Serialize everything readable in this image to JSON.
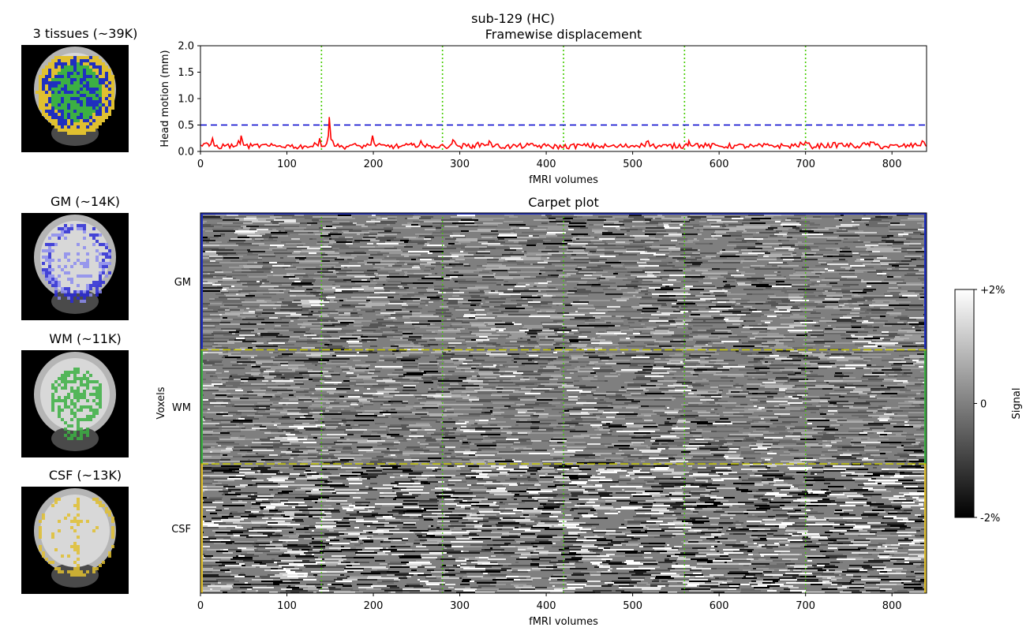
{
  "figure_title": "sub-129 (HC)",
  "thumbnails": [
    {
      "title": "3 tissues (~39K)",
      "overlay": "tissues"
    },
    {
      "title": "GM (~14K)",
      "overlay": "gm"
    },
    {
      "title": "WM (~11K)",
      "overlay": "wm"
    },
    {
      "title": "CSF (~13K)",
      "overlay": "csf"
    }
  ],
  "colors": {
    "gm": "#1f2fbf",
    "wm": "#3cb043",
    "csf": "#e0c030",
    "fd_line": "#ff0000",
    "threshold": "#0000cc",
    "marker": "#44cc00"
  },
  "chart_data": [
    {
      "type": "line",
      "title": "Framewise displacement",
      "xlabel": "fMRI volumes",
      "ylabel": "Head motion (mm)",
      "xlim": [
        0,
        840
      ],
      "ylim": [
        0,
        2.0
      ],
      "xticks": [
        0,
        100,
        200,
        300,
        400,
        500,
        600,
        700,
        800
      ],
      "yticks": [
        "0.0",
        "0.5",
        "1.0",
        "1.5",
        "2.0"
      ],
      "threshold": 0.5,
      "vertical_markers": [
        140,
        280,
        420,
        560,
        700
      ],
      "series": [
        {
          "points": [
            [
              0,
              0.12
            ],
            [
              5,
              0.15
            ],
            [
              10,
              0.1
            ],
            [
              14,
              0.25
            ],
            [
              17,
              0.1
            ],
            [
              20,
              0.08
            ],
            [
              30,
              0.12
            ],
            [
              40,
              0.1
            ],
            [
              47,
              0.3
            ],
            [
              50,
              0.12
            ],
            [
              60,
              0.1
            ],
            [
              70,
              0.12
            ],
            [
              80,
              0.1
            ],
            [
              90,
              0.1
            ],
            [
              100,
              0.12
            ],
            [
              110,
              0.08
            ],
            [
              120,
              0.1
            ],
            [
              130,
              0.09
            ],
            [
              138,
              0.25
            ],
            [
              142,
              0.1
            ],
            [
              146,
              0.15
            ],
            [
              149,
              0.65
            ],
            [
              153,
              0.2
            ],
            [
              157,
              0.1
            ],
            [
              165,
              0.08
            ],
            [
              175,
              0.12
            ],
            [
              185,
              0.1
            ],
            [
              195,
              0.12
            ],
            [
              199,
              0.3
            ],
            [
              203,
              0.1
            ],
            [
              215,
              0.1
            ],
            [
              230,
              0.09
            ],
            [
              245,
              0.12
            ],
            [
              255,
              0.2
            ],
            [
              260,
              0.08
            ],
            [
              270,
              0.1
            ],
            [
              283,
              0.08
            ],
            [
              292,
              0.22
            ],
            [
              300,
              0.1
            ],
            [
              315,
              0.12
            ],
            [
              334,
              0.2
            ],
            [
              340,
              0.1
            ],
            [
              360,
              0.09
            ],
            [
              380,
              0.12
            ],
            [
              400,
              0.1
            ],
            [
              420,
              0.08
            ],
            [
              440,
              0.12
            ],
            [
              460,
              0.1
            ],
            [
              480,
              0.09
            ],
            [
              500,
              0.11
            ],
            [
              510,
              0.15
            ],
            [
              518,
              0.2
            ],
            [
              525,
              0.1
            ],
            [
              540,
              0.1
            ],
            [
              560,
              0.12
            ],
            [
              565,
              0.2
            ],
            [
              580,
              0.12
            ],
            [
              600,
              0.1
            ],
            [
              620,
              0.11
            ],
            [
              640,
              0.09
            ],
            [
              660,
              0.12
            ],
            [
              680,
              0.1
            ],
            [
              700,
              0.18
            ],
            [
              706,
              0.1
            ],
            [
              720,
              0.12
            ],
            [
              740,
              0.15
            ],
            [
              760,
              0.1
            ],
            [
              775,
              0.18
            ],
            [
              790,
              0.08
            ],
            [
              810,
              0.1
            ],
            [
              825,
              0.12
            ],
            [
              835,
              0.2
            ],
            [
              840,
              0.1
            ]
          ]
        }
      ]
    },
    {
      "type": "heatmap",
      "title": "Carpet plot",
      "xlabel": "fMRI volumes",
      "ylabel": "Voxels",
      "xlim": [
        0,
        840
      ],
      "xticks": [
        0,
        100,
        200,
        300,
        400,
        500,
        600,
        700,
        800
      ],
      "rows": [
        {
          "label": "GM",
          "fraction": 0.36
        },
        {
          "label": "WM",
          "fraction": 0.3
        },
        {
          "label": "CSF",
          "fraction": 0.34
        }
      ],
      "vertical_markers": [
        140,
        280,
        420,
        560,
        700
      ],
      "colorbar": {
        "label": "Signal",
        "max_label": "+2%",
        "mid_label": "0",
        "min_label": "-2%"
      }
    }
  ]
}
